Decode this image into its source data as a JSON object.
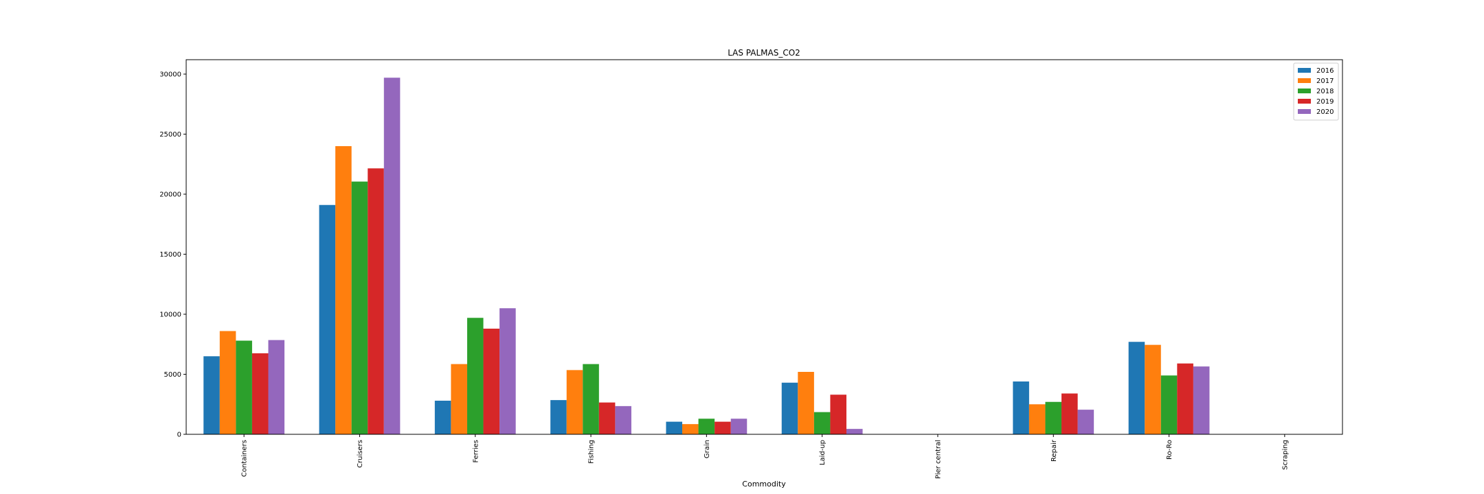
{
  "chart_data": {
    "type": "bar",
    "title": "LAS PALMAS_CO2",
    "xlabel": "Commodity",
    "ylabel": "",
    "ylim": [
      0,
      31200
    ],
    "yticks": [
      0,
      5000,
      10000,
      15000,
      20000,
      25000,
      30000
    ],
    "legend_position": "top-right",
    "grid": false,
    "categories": [
      "Containers",
      "Cruisers",
      "Ferries",
      "Fishing",
      "Grain",
      "Laid-up",
      "Pier central",
      "Repair",
      "Ro-Ro",
      "Scraping"
    ],
    "series": [
      {
        "name": "2016",
        "color": "#1f77b4",
        "values": [
          6500,
          19100,
          2800,
          2850,
          1050,
          4300,
          0,
          4400,
          7700,
          0
        ]
      },
      {
        "name": "2017",
        "color": "#ff7f0e",
        "values": [
          8600,
          24000,
          5850,
          5350,
          850,
          5200,
          0,
          2500,
          7450,
          0
        ]
      },
      {
        "name": "2018",
        "color": "#2ca02c",
        "values": [
          7800,
          21050,
          9700,
          5850,
          1300,
          1850,
          0,
          2700,
          4900,
          0
        ]
      },
      {
        "name": "2019",
        "color": "#d62728",
        "values": [
          6750,
          22150,
          8800,
          2650,
          1050,
          3300,
          0,
          3400,
          5900,
          0
        ]
      },
      {
        "name": "2020",
        "color": "#9467bd",
        "values": [
          7850,
          29700,
          10500,
          2350,
          1300,
          450,
          0,
          2050,
          5650,
          0
        ]
      }
    ]
  }
}
